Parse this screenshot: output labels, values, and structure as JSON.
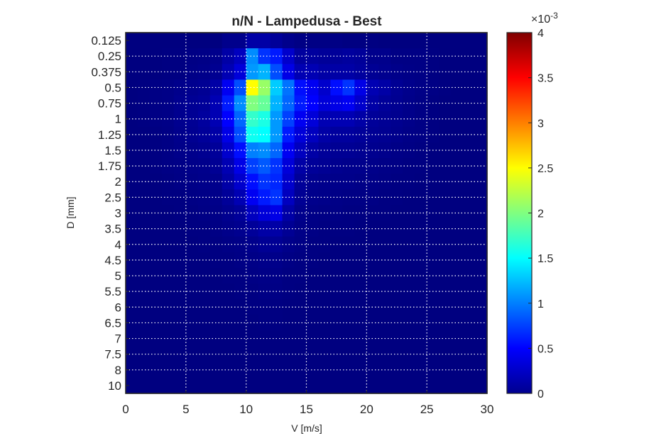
{
  "chart_data": {
    "type": "heatmap",
    "title": "n/N - Lampedusa - Best",
    "xlabel": "V [m/s]",
    "ylabel": "D [mm]",
    "xlim": [
      0,
      30
    ],
    "x_ticks": [
      "0",
      "5",
      "10",
      "15",
      "20",
      "25",
      "30"
    ],
    "y_categories": [
      "0.125",
      "0.25",
      "0.375",
      "0.5",
      "0.75",
      "1",
      "1.25",
      "1.5",
      "1.75",
      "2",
      "2.5",
      "3",
      "3.5",
      "4",
      "4.5",
      "5",
      "5.5",
      "6",
      "6.5",
      "7",
      "7.5",
      "8",
      "10"
    ],
    "x_bins": [
      0,
      1,
      2,
      3,
      4,
      5,
      6,
      7,
      8,
      9,
      10,
      11,
      12,
      13,
      14,
      15,
      16,
      17,
      18,
      19,
      20,
      21,
      22,
      23,
      24,
      25,
      26,
      27,
      28,
      29
    ],
    "colormap": "jet",
    "colorbar": {
      "min": 0,
      "max": 4,
      "exponent_label": "×10",
      "exponent_power": "-3",
      "ticks": [
        "0",
        "0.5",
        "1",
        "1.5",
        "2",
        "2.5",
        "3",
        "3.5",
        "4"
      ]
    },
    "grid": "dotted-white",
    "values_x1e3": [
      [
        0.0,
        0.0,
        0.0,
        0.0,
        0.0,
        0.0,
        0.0,
        0.0,
        0.05,
        0.05,
        0.15,
        0.15,
        0.1,
        0.05,
        0.02,
        0.02,
        0.02,
        0.02,
        0.01,
        0.01,
        0.01,
        0.0,
        0.0,
        0.0,
        0.0,
        0.0,
        0.0,
        0.0,
        0.0,
        0.0
      ],
      [
        0.0,
        0.0,
        0.0,
        0.01,
        0.01,
        0.02,
        0.03,
        0.05,
        0.15,
        0.25,
        1.05,
        0.7,
        0.6,
        0.3,
        0.12,
        0.12,
        0.1,
        0.1,
        0.12,
        0.1,
        0.05,
        0.05,
        0.02,
        0.02,
        0.02,
        0.01,
        0.0,
        0.0,
        0.0,
        0.0
      ],
      [
        0.0,
        0.0,
        0.0,
        0.01,
        0.01,
        0.03,
        0.04,
        0.07,
        0.2,
        0.35,
        1.1,
        1.2,
        0.8,
        0.4,
        0.2,
        0.2,
        0.15,
        0.15,
        0.15,
        0.12,
        0.08,
        0.06,
        0.04,
        0.03,
        0.02,
        0.01,
        0.0,
        0.0,
        0.0,
        0.0
      ],
      [
        0.0,
        0.01,
        0.02,
        0.03,
        0.05,
        0.06,
        0.08,
        0.15,
        0.45,
        0.8,
        2.5,
        2.1,
        1.3,
        0.95,
        0.55,
        0.45,
        0.3,
        0.55,
        0.7,
        0.4,
        0.2,
        0.15,
        0.08,
        0.05,
        0.03,
        0.02,
        0.01,
        0.0,
        0.0,
        0.0
      ],
      [
        0.0,
        0.01,
        0.02,
        0.03,
        0.06,
        0.08,
        0.1,
        0.2,
        0.6,
        1.05,
        2.0,
        1.9,
        1.2,
        0.9,
        0.6,
        0.5,
        0.35,
        0.4,
        0.45,
        0.3,
        0.15,
        0.1,
        0.07,
        0.04,
        0.02,
        0.01,
        0.0,
        0.0,
        0.0,
        0.0
      ],
      [
        0.0,
        0.01,
        0.02,
        0.03,
        0.06,
        0.08,
        0.12,
        0.2,
        0.5,
        0.9,
        1.7,
        1.6,
        1.1,
        0.75,
        0.45,
        0.35,
        0.2,
        0.2,
        0.2,
        0.15,
        0.1,
        0.08,
        0.06,
        0.04,
        0.02,
        0.01,
        0.0,
        0.0,
        0.0,
        0.0
      ],
      [
        0.0,
        0.0,
        0.01,
        0.02,
        0.05,
        0.07,
        0.1,
        0.15,
        0.4,
        0.8,
        1.55,
        1.5,
        1.1,
        0.6,
        0.35,
        0.25,
        0.15,
        0.12,
        0.12,
        0.1,
        0.08,
        0.07,
        0.05,
        0.03,
        0.02,
        0.01,
        0.0,
        0.0,
        0.0,
        0.0
      ],
      [
        0.0,
        0.0,
        0.01,
        0.02,
        0.04,
        0.05,
        0.07,
        0.1,
        0.3,
        0.55,
        1.0,
        1.05,
        0.9,
        0.45,
        0.25,
        0.15,
        0.1,
        0.08,
        0.08,
        0.07,
        0.06,
        0.05,
        0.03,
        0.02,
        0.01,
        0.0,
        0.0,
        0.0,
        0.0,
        0.0
      ],
      [
        0.0,
        0.0,
        0.01,
        0.02,
        0.03,
        0.04,
        0.05,
        0.08,
        0.2,
        0.4,
        0.75,
        0.85,
        0.7,
        0.35,
        0.15,
        0.1,
        0.08,
        0.06,
        0.05,
        0.05,
        0.04,
        0.03,
        0.02,
        0.01,
        0.01,
        0.0,
        0.0,
        0.0,
        0.0,
        0.0
      ],
      [
        0.0,
        0.0,
        0.0,
        0.01,
        0.02,
        0.03,
        0.04,
        0.05,
        0.15,
        0.3,
        0.55,
        0.7,
        0.65,
        0.3,
        0.1,
        0.06,
        0.05,
        0.04,
        0.04,
        0.03,
        0.03,
        0.02,
        0.01,
        0.01,
        0.0,
        0.0,
        0.0,
        0.0,
        0.0,
        0.0
      ],
      [
        0.0,
        0.0,
        0.0,
        0.01,
        0.01,
        0.02,
        0.03,
        0.04,
        0.1,
        0.2,
        0.45,
        0.6,
        0.7,
        0.25,
        0.08,
        0.05,
        0.04,
        0.03,
        0.02,
        0.02,
        0.02,
        0.01,
        0.01,
        0.0,
        0.0,
        0.0,
        0.0,
        0.0,
        0.0,
        0.0
      ],
      [
        0.0,
        0.0,
        0.0,
        0.0,
        0.01,
        0.01,
        0.02,
        0.03,
        0.06,
        0.1,
        0.25,
        0.35,
        0.4,
        0.15,
        0.05,
        0.03,
        0.02,
        0.02,
        0.01,
        0.01,
        0.01,
        0.01,
        0.0,
        0.0,
        0.0,
        0.0,
        0.0,
        0.0,
        0.0,
        0.0
      ],
      [
        0.0,
        0.0,
        0.0,
        0.0,
        0.0,
        0.01,
        0.01,
        0.02,
        0.04,
        0.06,
        0.1,
        0.15,
        0.15,
        0.08,
        0.03,
        0.02,
        0.01,
        0.01,
        0.01,
        0.0,
        0.0,
        0.0,
        0.0,
        0.0,
        0.0,
        0.0,
        0.0,
        0.0,
        0.0,
        0.0
      ],
      [
        0.0,
        0.0,
        0.0,
        0.0,
        0.0,
        0.0,
        0.01,
        0.01,
        0.02,
        0.03,
        0.05,
        0.08,
        0.08,
        0.04,
        0.02,
        0.01,
        0.01,
        0.0,
        0.0,
        0.0,
        0.0,
        0.0,
        0.0,
        0.0,
        0.0,
        0.0,
        0.0,
        0.0,
        0.0,
        0.0
      ],
      [
        0.0,
        0.0,
        0.0,
        0.0,
        0.0,
        0.0,
        0.0,
        0.01,
        0.01,
        0.02,
        0.03,
        0.04,
        0.04,
        0.02,
        0.01,
        0.01,
        0.0,
        0.0,
        0.0,
        0.0,
        0.0,
        0.0,
        0.0,
        0.0,
        0.0,
        0.0,
        0.0,
        0.0,
        0.0,
        0.0
      ],
      [
        0.0,
        0.0,
        0.0,
        0.0,
        0.0,
        0.0,
        0.0,
        0.0,
        0.01,
        0.01,
        0.02,
        0.03,
        0.03,
        0.01,
        0.01,
        0.0,
        0.0,
        0.0,
        0.0,
        0.0,
        0.0,
        0.0,
        0.0,
        0.0,
        0.0,
        0.0,
        0.0,
        0.0,
        0.0,
        0.0
      ],
      [
        0.0,
        0.0,
        0.0,
        0.0,
        0.0,
        0.0,
        0.0,
        0.0,
        0.0,
        0.01,
        0.01,
        0.02,
        0.02,
        0.01,
        0.0,
        0.0,
        0.0,
        0.0,
        0.0,
        0.0,
        0.0,
        0.0,
        0.0,
        0.0,
        0.0,
        0.0,
        0.0,
        0.0,
        0.0,
        0.0
      ],
      [
        0.0,
        0.0,
        0.0,
        0.0,
        0.0,
        0.0,
        0.0,
        0.0,
        0.0,
        0.0,
        0.01,
        0.01,
        0.01,
        0.0,
        0.0,
        0.0,
        0.0,
        0.0,
        0.0,
        0.0,
        0.0,
        0.0,
        0.0,
        0.0,
        0.0,
        0.0,
        0.0,
        0.0,
        0.0,
        0.0
      ],
      [
        0.0,
        0.0,
        0.0,
        0.0,
        0.0,
        0.0,
        0.0,
        0.0,
        0.0,
        0.0,
        0.0,
        0.01,
        0.01,
        0.0,
        0.0,
        0.0,
        0.0,
        0.0,
        0.0,
        0.0,
        0.0,
        0.0,
        0.0,
        0.0,
        0.0,
        0.0,
        0.0,
        0.0,
        0.0,
        0.0
      ],
      [
        0.0,
        0.0,
        0.0,
        0.0,
        0.0,
        0.0,
        0.0,
        0.0,
        0.0,
        0.0,
        0.0,
        0.0,
        0.0,
        0.0,
        0.0,
        0.0,
        0.0,
        0.0,
        0.0,
        0.0,
        0.0,
        0.0,
        0.0,
        0.0,
        0.0,
        0.0,
        0.0,
        0.0,
        0.0,
        0.0
      ],
      [
        0.0,
        0.0,
        0.0,
        0.0,
        0.0,
        0.0,
        0.0,
        0.0,
        0.0,
        0.0,
        0.0,
        0.0,
        0.0,
        0.0,
        0.0,
        0.0,
        0.0,
        0.0,
        0.0,
        0.0,
        0.0,
        0.0,
        0.0,
        0.0,
        0.0,
        0.0,
        0.0,
        0.0,
        0.0,
        0.0
      ],
      [
        0.0,
        0.0,
        0.0,
        0.0,
        0.0,
        0.0,
        0.0,
        0.0,
        0.0,
        0.0,
        0.0,
        0.0,
        0.0,
        0.0,
        0.0,
        0.0,
        0.0,
        0.0,
        0.0,
        0.0,
        0.0,
        0.0,
        0.0,
        0.0,
        0.0,
        0.0,
        0.0,
        0.0,
        0.0,
        0.0
      ],
      [
        0.0,
        0.0,
        0.0,
        0.0,
        0.0,
        0.0,
        0.0,
        0.0,
        0.0,
        0.0,
        0.0,
        0.0,
        0.0,
        0.0,
        0.0,
        0.0,
        0.0,
        0.0,
        0.0,
        0.0,
        0.0,
        0.0,
        0.0,
        0.0,
        0.0,
        0.0,
        0.0,
        0.0,
        0.0,
        0.0
      ]
    ]
  }
}
